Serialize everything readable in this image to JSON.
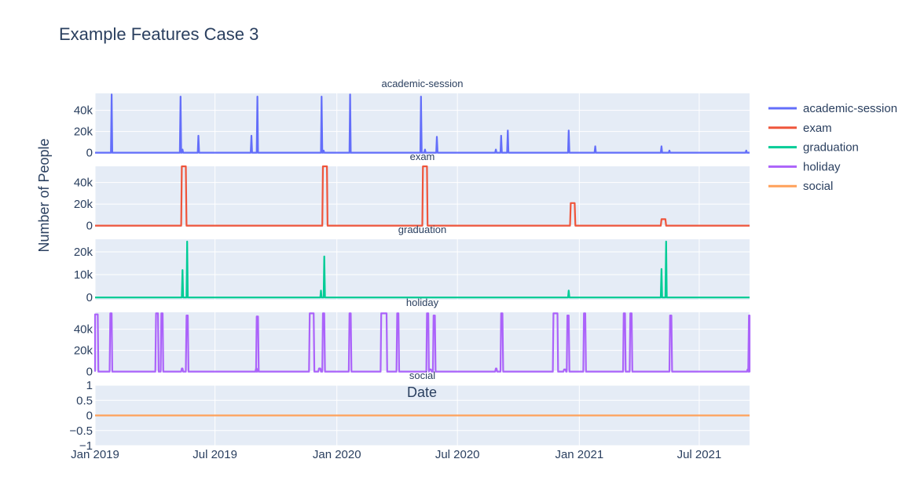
{
  "title": "Example Features Case 3",
  "chart_data": {
    "type": "line",
    "title": "Example Features Case 3",
    "ylabel": "Number of People",
    "xlabel": "Date",
    "x_range": [
      "2019-01-01",
      "2021-09-15"
    ],
    "x_ticks": [
      {
        "date": "2019-01-01",
        "label": "Jan 2019"
      },
      {
        "date": "2019-07-01",
        "label": "Jul 2019"
      },
      {
        "date": "2020-01-01",
        "label": "Jan 2020"
      },
      {
        "date": "2020-07-01",
        "label": "Jul 2020"
      },
      {
        "date": "2021-01-01",
        "label": "Jan 2021"
      },
      {
        "date": "2021-07-01",
        "label": "Jul 2021"
      }
    ],
    "grid": true,
    "legend_position": "top-right",
    "series": [
      {
        "name": "academic-session",
        "color": "#636efa",
        "ylim": [
          -1000,
          56000
        ],
        "yticks": [
          {
            "v": 0,
            "label": "0"
          },
          {
            "v": 20000,
            "label": "20k"
          },
          {
            "v": 40000,
            "label": "40k"
          }
        ],
        "spikes": [
          {
            "date": "2019-01-26",
            "value": 55000
          },
          {
            "date": "2019-05-10",
            "value": 53000
          },
          {
            "date": "2019-05-13",
            "value": 3000
          },
          {
            "date": "2019-06-06",
            "value": 16000
          },
          {
            "date": "2019-08-25",
            "value": 16000
          },
          {
            "date": "2019-09-03",
            "value": 53000
          },
          {
            "date": "2019-12-09",
            "value": 53000
          },
          {
            "date": "2019-12-12",
            "value": 2000
          },
          {
            "date": "2020-01-21",
            "value": 55000
          },
          {
            "date": "2020-05-07",
            "value": 53000
          },
          {
            "date": "2020-05-13",
            "value": 3000
          },
          {
            "date": "2020-05-31",
            "value": 15000
          },
          {
            "date": "2020-08-28",
            "value": 3000
          },
          {
            "date": "2020-09-05",
            "value": 16000
          },
          {
            "date": "2020-09-15",
            "value": 21000
          },
          {
            "date": "2020-12-16",
            "value": 21000
          },
          {
            "date": "2021-01-25",
            "value": 6000
          },
          {
            "date": "2021-05-05",
            "value": 6000
          },
          {
            "date": "2021-05-17",
            "value": 2000
          },
          {
            "date": "2021-09-10",
            "value": 2000
          }
        ]
      },
      {
        "name": "exam",
        "color": "#ef553b",
        "ylim": [
          -1000,
          55000
        ],
        "yticks": [
          {
            "v": 0,
            "label": "0"
          },
          {
            "v": 20000,
            "label": "20k"
          },
          {
            "v": 40000,
            "label": "40k"
          }
        ],
        "blocks": [
          {
            "start": "2019-05-12",
            "end": "2019-05-18",
            "value": 55000
          },
          {
            "start": "2019-12-11",
            "end": "2019-12-17",
            "value": 55000
          },
          {
            "start": "2020-05-10",
            "end": "2020-05-16",
            "value": 55000
          },
          {
            "start": "2020-12-19",
            "end": "2020-12-25",
            "value": 21000
          },
          {
            "start": "2021-05-05",
            "end": "2021-05-11",
            "value": 6000
          }
        ]
      },
      {
        "name": "graduation",
        "color": "#00cc96",
        "ylim": [
          -1000,
          25500
        ],
        "yticks": [
          {
            "v": 0,
            "label": "0"
          },
          {
            "v": 10000,
            "label": "10k"
          },
          {
            "v": 20000,
            "label": "20k"
          }
        ],
        "spikes": [
          {
            "date": "2019-05-13",
            "value": 12000
          },
          {
            "date": "2019-05-20",
            "value": 24500
          },
          {
            "date": "2019-12-08",
            "value": 3000
          },
          {
            "date": "2019-12-13",
            "value": 18000
          },
          {
            "date": "2020-12-16",
            "value": 3000
          },
          {
            "date": "2021-05-05",
            "value": 12500
          },
          {
            "date": "2021-05-12",
            "value": 24500
          }
        ]
      },
      {
        "name": "holiday",
        "color": "#ab63fa",
        "ylim": [
          -1000,
          56000
        ],
        "yticks": [
          {
            "v": 0,
            "label": "0"
          },
          {
            "v": 20000,
            "label": "20k"
          },
          {
            "v": 40000,
            "label": "40k"
          }
        ],
        "blocks": [
          {
            "start": "2019-01-01",
            "end": "2019-01-05",
            "value": 54000
          },
          {
            "start": "2019-01-24",
            "end": "2019-01-26",
            "value": 55000
          },
          {
            "start": "2019-04-03",
            "end": "2019-04-06",
            "value": 55000
          },
          {
            "start": "2019-04-11",
            "end": "2019-04-13",
            "value": 55000
          },
          {
            "start": "2019-05-12",
            "end": "2019-05-13",
            "value": 3000
          },
          {
            "start": "2019-05-19",
            "end": "2019-05-21",
            "value": 53000
          },
          {
            "start": "2019-09-01",
            "end": "2019-09-02",
            "value": 3000
          },
          {
            "start": "2019-09-02",
            "end": "2019-09-04",
            "value": 52000
          },
          {
            "start": "2019-11-21",
            "end": "2019-11-27",
            "value": 55000
          },
          {
            "start": "2019-12-05",
            "end": "2019-12-07",
            "value": 3000
          },
          {
            "start": "2019-12-11",
            "end": "2019-12-13",
            "value": 55000
          },
          {
            "start": "2020-01-20",
            "end": "2020-01-22",
            "value": 55000
          },
          {
            "start": "2020-03-08",
            "end": "2020-03-16",
            "value": 55000
          },
          {
            "start": "2020-04-01",
            "end": "2020-04-03",
            "value": 55000
          },
          {
            "start": "2020-05-16",
            "end": "2020-05-18",
            "value": 55000
          },
          {
            "start": "2020-05-20",
            "end": "2020-05-22",
            "value": 2000
          },
          {
            "start": "2020-05-26",
            "end": "2020-05-28",
            "value": 53000
          },
          {
            "start": "2020-08-28",
            "end": "2020-08-29",
            "value": 3000
          },
          {
            "start": "2020-09-05",
            "end": "2020-09-07",
            "value": 55000
          },
          {
            "start": "2020-11-23",
            "end": "2020-11-29",
            "value": 55000
          },
          {
            "start": "2020-12-09",
            "end": "2020-12-11",
            "value": 2000
          },
          {
            "start": "2020-12-14",
            "end": "2020-12-16",
            "value": 53000
          },
          {
            "start": "2021-01-08",
            "end": "2021-01-10",
            "value": 55000
          },
          {
            "start": "2021-03-09",
            "end": "2021-03-11",
            "value": 55000
          },
          {
            "start": "2021-03-19",
            "end": "2021-03-21",
            "value": 55000
          },
          {
            "start": "2021-05-18",
            "end": "2021-05-20",
            "value": 53000
          },
          {
            "start": "2021-09-12",
            "end": "2021-09-14",
            "value": 2000
          },
          {
            "start": "2021-09-14",
            "end": "2021-09-15",
            "value": 53000
          }
        ]
      },
      {
        "name": "social",
        "color": "#ffa15a",
        "ylim": [
          -1,
          1
        ],
        "yticks": [
          {
            "v": -1,
            "label": "−1"
          },
          {
            "v": -0.5,
            "label": "−0.5"
          },
          {
            "v": 0,
            "label": "0"
          },
          {
            "v": 0.5,
            "label": "0.5"
          },
          {
            "v": 1,
            "label": "1"
          }
        ],
        "constant": 0
      }
    ]
  }
}
